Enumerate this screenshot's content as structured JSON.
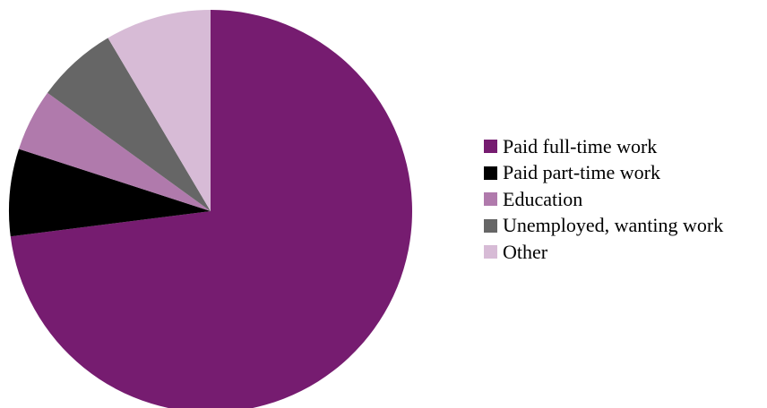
{
  "chart_data": {
    "type": "pie",
    "title": "",
    "start_angle": "12 o'clock",
    "direction": "clockwise",
    "legend_position": "right",
    "slices": [
      {
        "label": "Paid full-time work",
        "value": 73,
        "color": "#761c70"
      },
      {
        "label": "Paid part-time work",
        "value": 7,
        "color": "#000000"
      },
      {
        "label": "Education",
        "value": 5,
        "color": "#b07aac"
      },
      {
        "label": "Unemployed, wanting work",
        "value": 6.5,
        "color": "#666666"
      },
      {
        "label": "Other",
        "value": 8.5,
        "color": "#d7bbd6"
      }
    ]
  }
}
